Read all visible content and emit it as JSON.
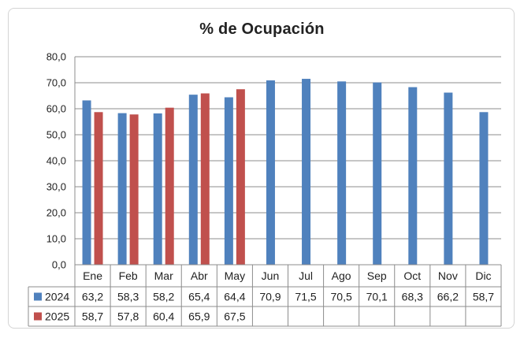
{
  "chart_data": {
    "type": "bar",
    "title": "% de Ocupación",
    "categories": [
      "Ene",
      "Feb",
      "Mar",
      "Abr",
      "May",
      "Jun",
      "Jul",
      "Ago",
      "Sep",
      "Oct",
      "Nov",
      "Dic"
    ],
    "series": [
      {
        "name": "2024",
        "color": "#4f81bd",
        "values": [
          63.2,
          58.3,
          58.2,
          65.4,
          64.4,
          70.9,
          71.5,
          70.5,
          70.1,
          68.3,
          66.2,
          58.7
        ],
        "labels": [
          "63,2",
          "58,3",
          "58,2",
          "65,4",
          "64,4",
          "70,9",
          "71,5",
          "70,5",
          "70,1",
          "68,3",
          "66,2",
          "58,7"
        ]
      },
      {
        "name": "2025",
        "color": "#c0504d",
        "values": [
          58.7,
          57.8,
          60.4,
          65.9,
          67.5,
          null,
          null,
          null,
          null,
          null,
          null,
          null
        ],
        "labels": [
          "58,7",
          "57,8",
          "60,4",
          "65,9",
          "67,5",
          "",
          "",
          "",
          "",
          "",
          "",
          ""
        ]
      }
    ],
    "ylim": [
      0,
      80
    ],
    "yticks": [
      0,
      10,
      20,
      30,
      40,
      50,
      60,
      70,
      80
    ],
    "ytick_labels": [
      "0,0",
      "10,0",
      "20,0",
      "30,0",
      "40,0",
      "50,0",
      "60,0",
      "70,0",
      "80,0"
    ],
    "grid": true,
    "legend": "data-table"
  }
}
